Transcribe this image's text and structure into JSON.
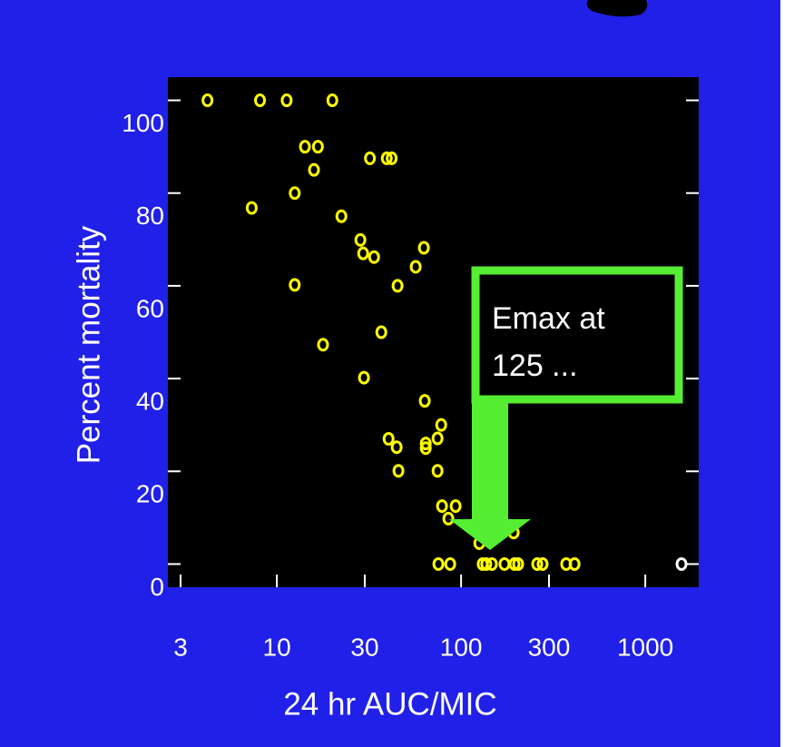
{
  "chart_data": {
    "type": "scatter",
    "x_label": "24 hr AUC/MIC",
    "y_label": "Percent mortality",
    "log_x": true,
    "xlim": [
      2.56,
      1950
    ],
    "ylim": [
      -5,
      105
    ],
    "xticks": [
      3,
      10,
      30,
      100,
      300,
      1000
    ],
    "yticks": [
      0,
      20,
      40,
      60,
      80,
      100
    ],
    "series": [
      {
        "color": "#ffff00",
        "x": [
          4.2,
          8.1,
          11.3,
          20,
          14.2,
          16.7,
          32,
          39.5,
          42,
          15.9,
          12.5,
          7.3,
          22.4,
          28.4,
          29.4,
          33.7,
          62.8,
          56.7,
          45.2,
          12.5,
          36.9,
          17.8,
          29.7,
          63.5,
          40.4,
          44.7,
          45.7,
          64.3,
          64.3,
          74.5,
          78,
          74.5,
          78.8,
          93.4,
          85.3,
          125.6,
          193,
          75.3,
          87.3,
          131,
          137,
          147,
          172,
          195,
          204,
          259,
          277,
          372,
          413
        ],
        "values": [
          100,
          100,
          100,
          100,
          90,
          90,
          87.5,
          87.5,
          87.5,
          85,
          80,
          76.8,
          75,
          69.9,
          67,
          66.2,
          68.2,
          64.1,
          60,
          60.2,
          50,
          47.3,
          40.2,
          35.2,
          27,
          25.2,
          20.1,
          26,
          25,
          27.1,
          30,
          20.1,
          12.5,
          12.5,
          9.8,
          4.5,
          6.8,
          0,
          0,
          0,
          0,
          0,
          0,
          0,
          0,
          0,
          0,
          0,
          0
        ]
      },
      {
        "color": "#ffffff",
        "x": [
          1573
        ],
        "values": [
          0
        ]
      }
    ],
    "annotation": [
      "Emax at",
      "125 ..."
    ],
    "annotation_color": "#55ee33"
  }
}
